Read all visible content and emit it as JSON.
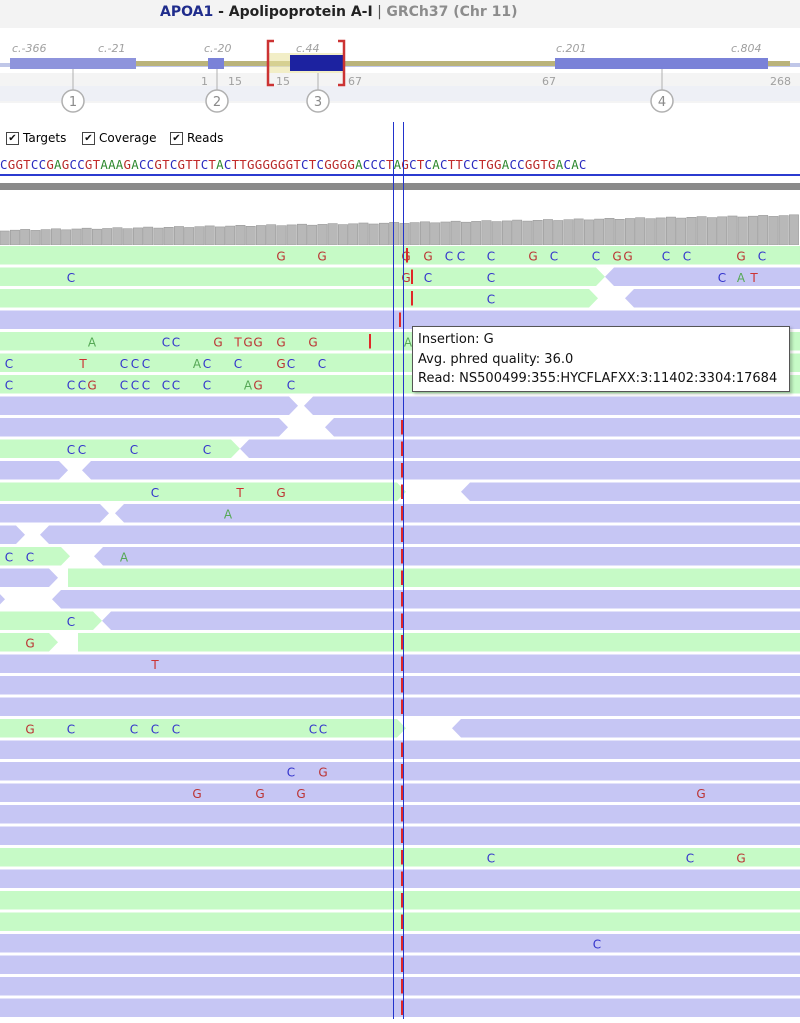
{
  "header": {
    "gene": "APOA1",
    "description": " - Apolipoprotein A-I",
    "separator": " | ",
    "assembly": "GRCh37 (Chr 11)"
  },
  "overview": {
    "cdna_labels": [
      "c.-366",
      "c.-21",
      "c.-20",
      "c.44",
      "c.201",
      "c.804"
    ],
    "exon_positions": [
      "1",
      "15",
      "15",
      "67",
      "67",
      "268"
    ],
    "exons": [
      "1",
      "2",
      "3",
      "4"
    ]
  },
  "toolbar": {
    "targets": "Targets",
    "coverage": "Coverage",
    "reads": "Reads"
  },
  "sequence": "CGGTCCGAGCCGTAAAGACCGTCGTTCTACTTGGGGGGTCTCGGGGACCCTAGCTCACTTCCTGGACCGGTGACAC",
  "colors": {
    "forward_read": "#c6fac6",
    "reverse_read": "#c6c6f4",
    "cursor": "#2233cc",
    "insertion": "#e02828",
    "A": "#55a855",
    "C": "#3333cc",
    "G": "#bb3333",
    "T": "#cc3333"
  },
  "reads": [
    {
      "segs": [
        [
          0,
          392,
          "f",
          "l"
        ],
        [
          392,
          800,
          "f",
          "r"
        ]
      ],
      "mm": [
        [
          281,
          "G"
        ],
        [
          322,
          "G"
        ],
        [
          406,
          "G"
        ],
        [
          428,
          "G"
        ],
        [
          449,
          "C"
        ],
        [
          461,
          "C"
        ],
        [
          491,
          "C"
        ],
        [
          533,
          "G"
        ],
        [
          554,
          "C"
        ],
        [
          596,
          "C"
        ],
        [
          617,
          "G"
        ],
        [
          628,
          "G"
        ],
        [
          666,
          "C"
        ],
        [
          687,
          "C"
        ],
        [
          741,
          "G"
        ],
        [
          762,
          "C"
        ]
      ],
      "ins": [
        406
      ]
    },
    {
      "segs": [
        [
          0,
          605,
          "f",
          "r"
        ],
        [
          605,
          800,
          "r",
          "l"
        ]
      ],
      "mm": [
        [
          71,
          "C"
        ],
        [
          406,
          "G"
        ],
        [
          428,
          "C"
        ],
        [
          491,
          "C"
        ],
        [
          722,
          "C"
        ],
        [
          741,
          "A"
        ],
        [
          754,
          "T"
        ]
      ],
      "ins": [
        411
      ]
    },
    {
      "segs": [
        [
          0,
          598,
          "f",
          "r"
        ],
        [
          625,
          800,
          "r",
          "l"
        ]
      ],
      "mm": [
        [
          491,
          "C"
        ]
      ],
      "ins": [
        411
      ]
    },
    {
      "segs": [
        [
          0,
          800,
          "r",
          "l"
        ]
      ],
      "mm": [],
      "ins": [
        399
      ]
    },
    {
      "segs": [
        [
          0,
          800,
          "f",
          "r"
        ]
      ],
      "mm": [
        [
          92,
          "A"
        ],
        [
          166,
          "C"
        ],
        [
          176,
          "C"
        ],
        [
          218,
          "G"
        ],
        [
          238,
          "T"
        ],
        [
          248,
          "G"
        ],
        [
          258,
          "G"
        ],
        [
          281,
          "G"
        ],
        [
          313,
          "G"
        ],
        [
          408,
          "A"
        ]
      ],
      "ins": [
        369
      ]
    },
    {
      "segs": [
        [
          0,
          800,
          "f",
          "r"
        ]
      ],
      "mm": [
        [
          9,
          "C"
        ],
        [
          83,
          "T"
        ],
        [
          124,
          "C"
        ],
        [
          135,
          "C"
        ],
        [
          146,
          "C"
        ],
        [
          197,
          "A"
        ],
        [
          207,
          "C"
        ],
        [
          238,
          "C"
        ],
        [
          281,
          "G"
        ],
        [
          291,
          "C"
        ],
        [
          322,
          "C"
        ]
      ],
      "ins": []
    },
    {
      "segs": [
        [
          0,
          800,
          "f",
          "r"
        ]
      ],
      "mm": [
        [
          9,
          "C"
        ],
        [
          71,
          "C"
        ],
        [
          82,
          "C"
        ],
        [
          92,
          "G"
        ],
        [
          124,
          "C"
        ],
        [
          135,
          "C"
        ],
        [
          146,
          "C"
        ],
        [
          166,
          "C"
        ],
        [
          176,
          "C"
        ],
        [
          207,
          "C"
        ],
        [
          248,
          "A"
        ],
        [
          258,
          "G"
        ],
        [
          291,
          "C"
        ]
      ],
      "ins": []
    },
    {
      "segs": [
        [
          0,
          298,
          "r",
          "r"
        ],
        [
          304,
          800,
          "r",
          "l"
        ]
      ],
      "mm": [],
      "ins": []
    },
    {
      "segs": [
        [
          0,
          288,
          "r",
          "r"
        ],
        [
          325,
          800,
          "r",
          "l"
        ]
      ],
      "mm": [],
      "ins": [
        401
      ]
    },
    {
      "segs": [
        [
          0,
          240,
          "f",
          "r"
        ],
        [
          240,
          800,
          "r",
          "l"
        ]
      ],
      "mm": [
        [
          71,
          "C"
        ],
        [
          82,
          "C"
        ],
        [
          134,
          "C"
        ],
        [
          207,
          "C"
        ]
      ],
      "ins": [
        401
      ]
    },
    {
      "segs": [
        [
          0,
          68,
          "r",
          "r"
        ],
        [
          82,
          800,
          "r",
          "l"
        ]
      ],
      "mm": [],
      "ins": [
        401
      ]
    },
    {
      "segs": [
        [
          0,
          406,
          "f",
          "r"
        ],
        [
          461,
          800,
          "r",
          "l"
        ]
      ],
      "mm": [
        [
          155,
          "C"
        ],
        [
          240,
          "T"
        ],
        [
          281,
          "G"
        ]
      ],
      "ins": [
        401
      ]
    },
    {
      "segs": [
        [
          0,
          109,
          "r",
          "r"
        ],
        [
          115,
          800,
          "r",
          "l"
        ]
      ],
      "mm": [
        [
          228,
          "A"
        ]
      ],
      "ins": [
        401
      ]
    },
    {
      "segs": [
        [
          0,
          25,
          "r",
          "r"
        ],
        [
          40,
          800,
          "r",
          "l"
        ]
      ],
      "mm": [],
      "ins": [
        401
      ]
    },
    {
      "segs": [
        [
          0,
          70,
          "f",
          "r"
        ],
        [
          94,
          800,
          "r",
          "l"
        ]
      ],
      "mm": [
        [
          9,
          "C"
        ],
        [
          30,
          "C"
        ],
        [
          124,
          "A"
        ]
      ],
      "ins": [
        401
      ]
    },
    {
      "segs": [
        [
          0,
          58,
          "r",
          "r"
        ],
        [
          68,
          800,
          "f",
          "r"
        ]
      ],
      "mm": [],
      "ins": [
        401
      ]
    },
    {
      "segs": [
        [
          0,
          5,
          "r",
          "r"
        ],
        [
          52,
          800,
          "r",
          "l"
        ]
      ],
      "mm": [],
      "ins": [
        401
      ]
    },
    {
      "segs": [
        [
          0,
          102,
          "f",
          "r"
        ],
        [
          102,
          800,
          "r",
          "l"
        ]
      ],
      "mm": [
        [
          71,
          "C"
        ]
      ],
      "ins": [
        401
      ]
    },
    {
      "segs": [
        [
          0,
          58,
          "f",
          "r"
        ],
        [
          78,
          800,
          "f",
          "r"
        ]
      ],
      "mm": [
        [
          30,
          "G"
        ]
      ],
      "ins": [
        401
      ]
    },
    {
      "segs": [
        [
          0,
          800,
          "r",
          "l"
        ]
      ],
      "mm": [
        [
          155,
          "T"
        ]
      ],
      "ins": [
        401
      ]
    },
    {
      "segs": [
        [
          0,
          800,
          "r",
          "l"
        ]
      ],
      "mm": [],
      "ins": [
        401
      ]
    },
    {
      "segs": [
        [
          0,
          800,
          "r",
          "l"
        ]
      ],
      "mm": [],
      "ins": [
        401
      ]
    },
    {
      "segs": [
        [
          0,
          406,
          "f",
          "r"
        ],
        [
          452,
          800,
          "r",
          "l"
        ]
      ],
      "mm": [
        [
          30,
          "G"
        ],
        [
          71,
          "C"
        ],
        [
          134,
          "C"
        ],
        [
          155,
          "C"
        ],
        [
          176,
          "C"
        ],
        [
          313,
          "C"
        ],
        [
          323,
          "C"
        ]
      ],
      "ins": []
    },
    {
      "segs": [
        [
          0,
          800,
          "r",
          "l"
        ]
      ],
      "mm": [],
      "ins": [
        401
      ]
    },
    {
      "segs": [
        [
          0,
          800,
          "r",
          "l"
        ]
      ],
      "mm": [
        [
          291,
          "C"
        ],
        [
          323,
          "G"
        ]
      ],
      "ins": [
        401
      ]
    },
    {
      "segs": [
        [
          0,
          800,
          "r",
          "l"
        ]
      ],
      "mm": [
        [
          197,
          "G"
        ],
        [
          260,
          "G"
        ],
        [
          301,
          "G"
        ],
        [
          701,
          "G"
        ]
      ],
      "ins": [
        401
      ]
    },
    {
      "segs": [
        [
          0,
          800,
          "r",
          "l"
        ]
      ],
      "mm": [],
      "ins": [
        401
      ]
    },
    {
      "segs": [
        [
          0,
          800,
          "r",
          "l"
        ]
      ],
      "mm": [],
      "ins": [
        401
      ]
    },
    {
      "segs": [
        [
          0,
          800,
          "f",
          "r"
        ]
      ],
      "mm": [
        [
          491,
          "C"
        ],
        [
          690,
          "C"
        ],
        [
          741,
          "G"
        ]
      ],
      "ins": [
        401
      ]
    },
    {
      "segs": [
        [
          0,
          800,
          "r",
          "l"
        ]
      ],
      "mm": [],
      "ins": [
        401
      ]
    },
    {
      "segs": [
        [
          0,
          800,
          "f",
          "r"
        ]
      ],
      "mm": [],
      "ins": [
        401
      ]
    },
    {
      "segs": [
        [
          0,
          800,
          "f",
          "r"
        ]
      ],
      "mm": [],
      "ins": [
        401
      ]
    },
    {
      "segs": [
        [
          0,
          800,
          "r",
          "l"
        ]
      ],
      "mm": [
        [
          597,
          "C"
        ]
      ],
      "ins": [
        401
      ]
    },
    {
      "segs": [
        [
          0,
          800,
          "r",
          "l"
        ]
      ],
      "mm": [],
      "ins": [
        401
      ]
    },
    {
      "segs": [
        [
          0,
          800,
          "r",
          "l"
        ]
      ],
      "mm": [],
      "ins": [
        401
      ]
    },
    {
      "segs": [
        [
          0,
          800,
          "r",
          "l"
        ]
      ],
      "mm": [],
      "ins": [
        401
      ]
    }
  ],
  "tooltip": {
    "line1": "Insertion: G",
    "line2": "Avg. phred quality: 36.0",
    "line3": "Read: NS500499:355:HYCFLAFXX:3:11402:3304:17684"
  }
}
